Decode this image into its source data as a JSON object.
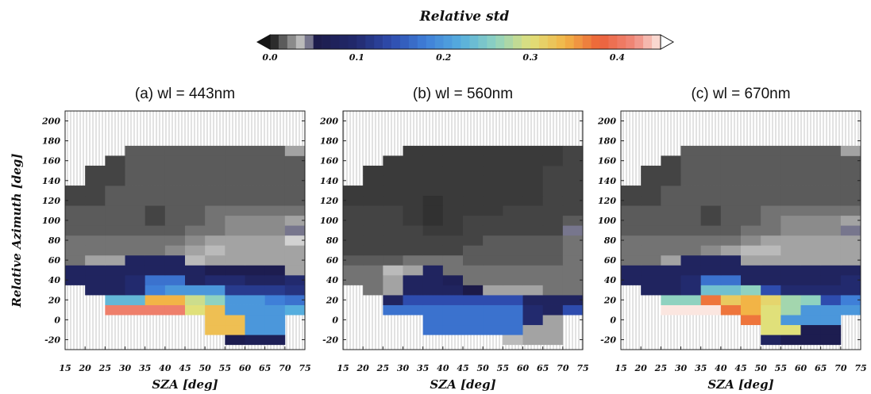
{
  "chart_data": {
    "type": "heatmap",
    "colorbar": {
      "title": "Relative std",
      "range": [
        0.0,
        0.45
      ],
      "ticks": [
        {
          "value": 0.0,
          "label": "0.0"
        },
        {
          "value": 0.1,
          "label": "0.1"
        },
        {
          "value": 0.2,
          "label": "0.2"
        },
        {
          "value": 0.3,
          "label": "0.3"
        },
        {
          "value": 0.4,
          "label": "0.4"
        }
      ],
      "stops": [
        {
          "v": 0.0,
          "color": "#141414"
        },
        {
          "v": 0.04,
          "color": "#d2d2d2"
        },
        {
          "v": 0.05,
          "color": "#1c1a48"
        },
        {
          "v": 0.1,
          "color": "#222a6e"
        },
        {
          "v": 0.14,
          "color": "#2e4cae"
        },
        {
          "v": 0.18,
          "color": "#3f7fd8"
        },
        {
          "v": 0.22,
          "color": "#56aede"
        },
        {
          "v": 0.26,
          "color": "#8fd2c0"
        },
        {
          "v": 0.3,
          "color": "#e0e07a"
        },
        {
          "v": 0.34,
          "color": "#f2b446"
        },
        {
          "v": 0.38,
          "color": "#ec6038"
        },
        {
          "v": 0.42,
          "color": "#ef8a7c"
        },
        {
          "v": 0.45,
          "color": "#fbe6e0"
        }
      ]
    },
    "axes": {
      "xlabel": "SZA [deg]",
      "ylabel": "Relative Azimuth [deg]",
      "xlim": [
        15,
        75
      ],
      "ylim": [
        -30,
        210
      ],
      "xticks": [
        15,
        20,
        25,
        30,
        35,
        40,
        45,
        50,
        55,
        60,
        65,
        70,
        75
      ],
      "yticks": [
        -20,
        0,
        20,
        40,
        60,
        80,
        100,
        120,
        140,
        160,
        180,
        200
      ],
      "x_bin_edges": [
        15,
        20,
        25,
        30,
        35,
        40,
        45,
        50,
        55,
        60,
        65,
        70,
        75
      ],
      "y_bin_edges": [
        -25,
        -15,
        -5,
        5,
        15,
        25,
        35,
        45,
        55,
        65,
        75,
        85,
        95,
        105,
        115,
        125,
        135,
        145,
        155,
        165,
        175,
        185,
        195
      ]
    },
    "panels": [
      {
        "title": "(a)    wl = 443nm",
        "rows": [
          [
            null,
            null,
            null,
            null,
            null,
            null,
            null,
            null,
            0.06,
            0.07,
            0.07,
            null
          ],
          [
            null,
            null,
            null,
            null,
            null,
            null,
            null,
            0.33,
            0.33,
            0.2,
            0.2,
            null
          ],
          [
            null,
            null,
            null,
            null,
            null,
            null,
            null,
            0.33,
            0.33,
            0.2,
            0.2,
            null
          ],
          [
            null,
            null,
            0.41,
            0.41,
            0.41,
            0.41,
            0.3,
            0.33,
            0.2,
            0.2,
            0.2,
            0.22
          ],
          [
            null,
            null,
            0.23,
            0.23,
            0.34,
            0.34,
            0.29,
            0.26,
            0.2,
            0.2,
            0.18,
            0.17
          ],
          [
            null,
            0.08,
            0.08,
            0.1,
            0.18,
            0.2,
            0.2,
            0.2,
            0.12,
            0.12,
            0.12,
            0.11
          ],
          [
            0.08,
            0.08,
            0.08,
            0.1,
            0.17,
            0.17,
            0.08,
            0.1,
            0.1,
            0.08,
            0.08,
            0.1
          ],
          [
            0.08,
            0.08,
            0.08,
            0.08,
            0.08,
            0.08,
            0.08,
            0.06,
            0.06,
            0.06,
            0.06,
            0.03
          ],
          [
            0.02,
            0.03,
            0.03,
            0.08,
            0.08,
            0.08,
            0.035,
            0.03,
            0.03,
            0.03,
            0.03,
            0.03
          ],
          [
            0.02,
            0.02,
            0.02,
            0.02,
            0.02,
            0.025,
            0.03,
            0.035,
            0.03,
            0.03,
            0.03,
            0.03
          ],
          [
            0.02,
            0.02,
            0.02,
            0.02,
            0.02,
            0.02,
            0.025,
            0.03,
            0.03,
            0.03,
            0.03,
            0.04
          ],
          [
            0.015,
            0.015,
            0.015,
            0.015,
            0.015,
            0.015,
            0.02,
            0.02,
            0.025,
            0.025,
            0.025,
            0.045
          ],
          [
            0.015,
            0.015,
            0.015,
            0.015,
            0.01,
            0.015,
            0.015,
            0.02,
            0.025,
            0.025,
            0.025,
            0.03
          ],
          [
            0.015,
            0.015,
            0.015,
            0.015,
            0.01,
            0.015,
            0.015,
            0.02,
            0.02,
            0.02,
            0.02,
            0.02
          ],
          [
            0.01,
            0.01,
            0.015,
            0.015,
            0.015,
            0.015,
            0.015,
            0.015,
            0.015,
            0.015,
            0.015,
            0.015
          ],
          [
            0.01,
            0.01,
            0.015,
            0.015,
            0.015,
            0.015,
            0.015,
            0.015,
            0.015,
            0.015,
            0.015,
            0.015
          ],
          [
            null,
            0.01,
            0.01,
            0.015,
            0.015,
            0.015,
            0.015,
            0.015,
            0.015,
            0.015,
            0.015,
            0.015
          ],
          [
            null,
            0.01,
            0.01,
            0.015,
            0.015,
            0.015,
            0.015,
            0.015,
            0.015,
            0.015,
            0.015,
            0.015
          ],
          [
            null,
            null,
            0.01,
            0.015,
            0.015,
            0.015,
            0.015,
            0.015,
            0.015,
            0.015,
            0.015,
            0.015
          ],
          [
            null,
            null,
            null,
            0.015,
            0.015,
            0.015,
            0.015,
            0.015,
            0.015,
            0.015,
            0.015,
            0.03
          ],
          [
            null,
            null,
            null,
            null,
            null,
            null,
            null,
            null,
            null,
            null,
            null,
            null
          ],
          [
            null,
            null,
            null,
            null,
            null,
            null,
            null,
            null,
            null,
            null,
            null,
            null
          ]
        ]
      },
      {
        "title": "(b)    wl = 560nm",
        "rows": [
          [
            null,
            null,
            null,
            null,
            null,
            null,
            null,
            null,
            0.035,
            0.03,
            0.03,
            null
          ],
          [
            null,
            null,
            null,
            null,
            0.17,
            0.17,
            0.17,
            0.17,
            0.17,
            0.03,
            0.03,
            null
          ],
          [
            null,
            null,
            null,
            null,
            0.17,
            0.17,
            0.17,
            0.17,
            0.17,
            0.1,
            0.03,
            null
          ],
          [
            null,
            null,
            0.17,
            0.17,
            0.17,
            0.17,
            0.17,
            0.17,
            0.17,
            0.1,
            0.08,
            0.14
          ],
          [
            null,
            null,
            0.08,
            0.14,
            0.14,
            0.14,
            0.14,
            0.14,
            0.14,
            0.08,
            0.08,
            0.08
          ],
          [
            null,
            0.02,
            0.03,
            0.08,
            0.08,
            0.08,
            0.05,
            0.03,
            0.03,
            0.03,
            0.02,
            0.02
          ],
          [
            0.02,
            0.02,
            0.03,
            0.08,
            0.08,
            0.07,
            0.02,
            0.02,
            0.02,
            0.02,
            0.02,
            0.02
          ],
          [
            0.02,
            0.02,
            0.035,
            0.03,
            0.08,
            0.02,
            0.02,
            0.02,
            0.02,
            0.02,
            0.02,
            0.02
          ],
          [
            0.015,
            0.015,
            0.015,
            0.02,
            0.02,
            0.02,
            0.015,
            0.015,
            0.015,
            0.015,
            0.015,
            0.02
          ],
          [
            0.01,
            0.01,
            0.01,
            0.01,
            0.01,
            0.01,
            0.015,
            0.015,
            0.015,
            0.015,
            0.015,
            0.02
          ],
          [
            0.01,
            0.01,
            0.01,
            0.01,
            0.01,
            0.01,
            0.01,
            0.015,
            0.015,
            0.015,
            0.015,
            0.02
          ],
          [
            0.01,
            0.01,
            0.01,
            0.01,
            0.008,
            0.008,
            0.01,
            0.01,
            0.01,
            0.01,
            0.01,
            0.045
          ],
          [
            0.01,
            0.01,
            0.01,
            0.008,
            0.006,
            0.008,
            0.01,
            0.01,
            0.01,
            0.01,
            0.01,
            0.015
          ],
          [
            0.01,
            0.01,
            0.01,
            0.008,
            0.006,
            0.008,
            0.008,
            0.008,
            0.01,
            0.01,
            0.01,
            0.01
          ],
          [
            0.008,
            0.008,
            0.008,
            0.008,
            0.006,
            0.008,
            0.008,
            0.008,
            0.008,
            0.008,
            0.01,
            0.01
          ],
          [
            0.008,
            0.008,
            0.008,
            0.008,
            0.008,
            0.008,
            0.008,
            0.008,
            0.008,
            0.008,
            0.01,
            0.01
          ],
          [
            null,
            0.008,
            0.008,
            0.008,
            0.008,
            0.008,
            0.008,
            0.008,
            0.008,
            0.008,
            0.01,
            0.01
          ],
          [
            null,
            0.008,
            0.008,
            0.008,
            0.008,
            0.008,
            0.008,
            0.008,
            0.008,
            0.008,
            0.01,
            0.01
          ],
          [
            null,
            null,
            0.008,
            0.008,
            0.008,
            0.008,
            0.008,
            0.008,
            0.008,
            0.008,
            0.008,
            0.01
          ],
          [
            null,
            null,
            null,
            0.008,
            0.008,
            0.008,
            0.008,
            0.008,
            0.008,
            0.008,
            0.008,
            0.01
          ],
          [
            null,
            null,
            null,
            null,
            null,
            null,
            null,
            null,
            null,
            null,
            null,
            null
          ],
          [
            null,
            null,
            null,
            null,
            null,
            null,
            null,
            null,
            null,
            null,
            null,
            null
          ]
        ]
      },
      {
        "title": "(c)    wl = 670nm",
        "rows": [
          [
            null,
            null,
            null,
            null,
            null,
            null,
            null,
            0.08,
            0.06,
            0.06,
            0.06,
            null
          ],
          [
            null,
            null,
            null,
            null,
            null,
            null,
            null,
            0.3,
            0.3,
            0.06,
            0.06,
            null
          ],
          [
            null,
            null,
            null,
            null,
            null,
            null,
            0.37,
            0.3,
            0.2,
            0.2,
            0.2,
            null
          ],
          [
            null,
            null,
            0.45,
            0.45,
            0.45,
            0.37,
            0.34,
            0.3,
            0.27,
            0.2,
            0.2,
            0.2
          ],
          [
            null,
            null,
            0.26,
            0.26,
            0.37,
            0.32,
            0.34,
            0.31,
            0.27,
            0.26,
            0.14,
            0.18
          ],
          [
            null,
            0.08,
            0.08,
            0.1,
            0.24,
            0.24,
            0.26,
            0.14,
            0.1,
            0.1,
            0.1,
            0.1
          ],
          [
            0.08,
            0.08,
            0.08,
            0.1,
            0.17,
            0.17,
            0.08,
            0.08,
            0.08,
            0.08,
            0.08,
            0.1
          ],
          [
            0.08,
            0.08,
            0.08,
            0.08,
            0.08,
            0.08,
            0.08,
            0.08,
            0.08,
            0.08,
            0.08,
            0.08
          ],
          [
            0.02,
            0.02,
            0.03,
            0.08,
            0.08,
            0.08,
            0.03,
            0.03,
            0.03,
            0.03,
            0.03,
            0.03
          ],
          [
            0.02,
            0.02,
            0.02,
            0.02,
            0.025,
            0.03,
            0.035,
            0.035,
            0.03,
            0.03,
            0.03,
            0.03
          ],
          [
            0.02,
            0.02,
            0.02,
            0.02,
            0.02,
            0.02,
            0.025,
            0.03,
            0.03,
            0.03,
            0.03,
            0.03
          ],
          [
            0.015,
            0.015,
            0.015,
            0.015,
            0.015,
            0.015,
            0.02,
            0.02,
            0.025,
            0.025,
            0.025,
            0.045
          ],
          [
            0.015,
            0.015,
            0.015,
            0.015,
            0.01,
            0.015,
            0.015,
            0.02,
            0.025,
            0.025,
            0.025,
            0.03
          ],
          [
            0.015,
            0.015,
            0.015,
            0.015,
            0.01,
            0.015,
            0.015,
            0.02,
            0.02,
            0.02,
            0.02,
            0.02
          ],
          [
            0.01,
            0.01,
            0.015,
            0.015,
            0.015,
            0.015,
            0.015,
            0.015,
            0.015,
            0.015,
            0.015,
            0.015
          ],
          [
            0.01,
            0.01,
            0.015,
            0.015,
            0.015,
            0.015,
            0.015,
            0.015,
            0.015,
            0.015,
            0.015,
            0.015
          ],
          [
            null,
            0.01,
            0.01,
            0.015,
            0.015,
            0.015,
            0.015,
            0.015,
            0.015,
            0.015,
            0.015,
            0.015
          ],
          [
            null,
            0.01,
            0.01,
            0.015,
            0.015,
            0.015,
            0.015,
            0.015,
            0.015,
            0.015,
            0.015,
            0.015
          ],
          [
            null,
            null,
            0.01,
            0.015,
            0.015,
            0.015,
            0.015,
            0.015,
            0.015,
            0.015,
            0.015,
            0.015
          ],
          [
            null,
            null,
            null,
            0.015,
            0.015,
            0.015,
            0.015,
            0.015,
            0.015,
            0.015,
            0.015,
            0.03
          ],
          [
            null,
            null,
            null,
            null,
            null,
            null,
            null,
            null,
            null,
            null,
            null,
            null
          ],
          [
            null,
            null,
            null,
            null,
            null,
            null,
            null,
            null,
            null,
            null,
            null,
            null
          ]
        ]
      }
    ]
  }
}
